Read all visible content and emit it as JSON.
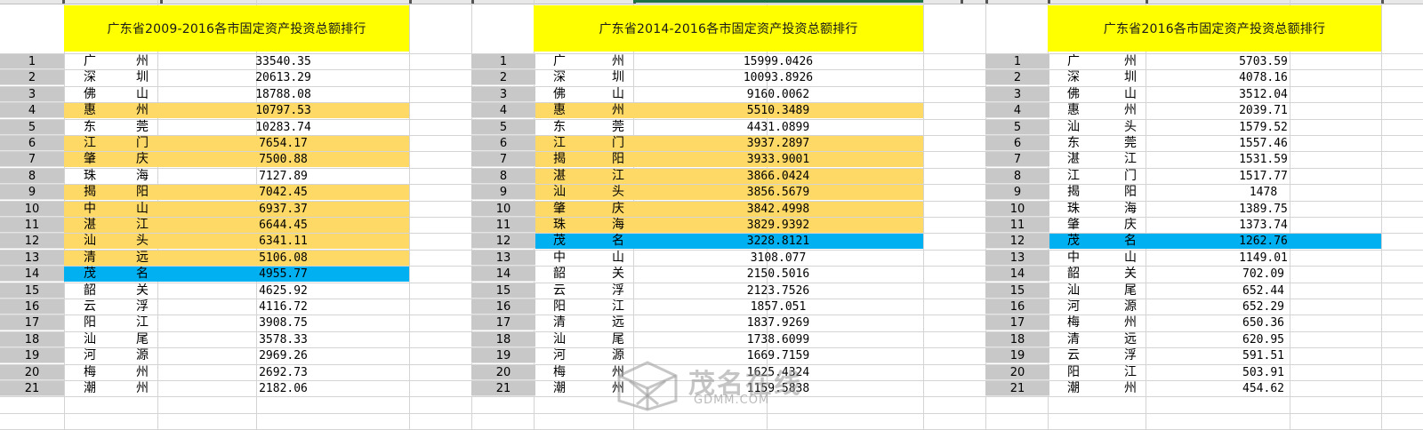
{
  "colors": {
    "title_bg": "#ffff00",
    "highlight_orange": "#ffd966",
    "highlight_blue": "#00b0f0",
    "rownum_bg": "#c8c8c8"
  },
  "tables": [
    {
      "title": "广东省2009-2016各市固定资产投资总额排行",
      "rows": [
        {
          "rank": "1",
          "city": "广州",
          "value": "33540.35",
          "hl": ""
        },
        {
          "rank": "2",
          "city": "深圳",
          "value": "20613.29",
          "hl": ""
        },
        {
          "rank": "3",
          "city": "佛山",
          "value": "18788.08",
          "hl": ""
        },
        {
          "rank": "4",
          "city": "惠州",
          "value": "10797.53",
          "hl": "orange"
        },
        {
          "rank": "5",
          "city": "东莞",
          "value": "10283.74",
          "hl": ""
        },
        {
          "rank": "6",
          "city": "江门",
          "value": "7654.17",
          "hl": "orange"
        },
        {
          "rank": "7",
          "city": "肇庆",
          "value": "7500.88",
          "hl": "orange"
        },
        {
          "rank": "8",
          "city": "珠海",
          "value": "7127.89",
          "hl": ""
        },
        {
          "rank": "9",
          "city": "揭阳",
          "value": "7042.45",
          "hl": "orange"
        },
        {
          "rank": "10",
          "city": "中山",
          "value": "6937.37",
          "hl": "orange"
        },
        {
          "rank": "11",
          "city": "湛江",
          "value": "6644.45",
          "hl": "orange"
        },
        {
          "rank": "12",
          "city": "汕头",
          "value": "6341.11",
          "hl": "orange"
        },
        {
          "rank": "13",
          "city": "清远",
          "value": "5106.08",
          "hl": "orange"
        },
        {
          "rank": "14",
          "city": "茂名",
          "value": "4955.77",
          "hl": "blue"
        },
        {
          "rank": "15",
          "city": "韶关",
          "value": "4625.92",
          "hl": ""
        },
        {
          "rank": "16",
          "city": "云浮",
          "value": "4116.72",
          "hl": ""
        },
        {
          "rank": "17",
          "city": "阳江",
          "value": "3908.75",
          "hl": ""
        },
        {
          "rank": "18",
          "city": "汕尾",
          "value": "3578.33",
          "hl": ""
        },
        {
          "rank": "19",
          "city": "河源",
          "value": "2969.26",
          "hl": ""
        },
        {
          "rank": "20",
          "city": "梅州",
          "value": "2692.73",
          "hl": ""
        },
        {
          "rank": "21",
          "city": "潮州",
          "value": "2182.06",
          "hl": ""
        }
      ]
    },
    {
      "title": "广东省2014-2016各市固定资产投资总额排行",
      "rows": [
        {
          "rank": "1",
          "city": "广州",
          "value": "15999.0426",
          "hl": ""
        },
        {
          "rank": "2",
          "city": "深圳",
          "value": "10093.8926",
          "hl": ""
        },
        {
          "rank": "3",
          "city": "佛山",
          "value": "9160.0062",
          "hl": ""
        },
        {
          "rank": "4",
          "city": "惠州",
          "value": "5510.3489",
          "hl": "orange"
        },
        {
          "rank": "5",
          "city": "东莞",
          "value": "4431.0899",
          "hl": ""
        },
        {
          "rank": "6",
          "city": "江门",
          "value": "3937.2897",
          "hl": "orange"
        },
        {
          "rank": "7",
          "city": "揭阳",
          "value": "3933.9001",
          "hl": "orange"
        },
        {
          "rank": "8",
          "city": "湛江",
          "value": "3866.0424",
          "hl": "orange"
        },
        {
          "rank": "9",
          "city": "汕头",
          "value": "3856.5679",
          "hl": "orange"
        },
        {
          "rank": "10",
          "city": "肇庆",
          "value": "3842.4998",
          "hl": "orange"
        },
        {
          "rank": "11",
          "city": "珠海",
          "value": "3829.9392",
          "hl": "orange"
        },
        {
          "rank": "12",
          "city": "茂名",
          "value": "3228.8121",
          "hl": "blue"
        },
        {
          "rank": "13",
          "city": "中山",
          "value": "3108.077",
          "hl": ""
        },
        {
          "rank": "14",
          "city": "韶关",
          "value": "2150.5016",
          "hl": ""
        },
        {
          "rank": "15",
          "city": "云浮",
          "value": "2123.7526",
          "hl": ""
        },
        {
          "rank": "16",
          "city": "阳江",
          "value": "1857.051",
          "hl": ""
        },
        {
          "rank": "17",
          "city": "清远",
          "value": "1837.9269",
          "hl": ""
        },
        {
          "rank": "18",
          "city": "汕尾",
          "value": "1738.6099",
          "hl": ""
        },
        {
          "rank": "19",
          "city": "河源",
          "value": "1669.7159",
          "hl": ""
        },
        {
          "rank": "20",
          "city": "梅州",
          "value": "1625.4324",
          "hl": ""
        },
        {
          "rank": "21",
          "city": "潮州",
          "value": "1159.5838",
          "hl": ""
        }
      ]
    },
    {
      "title": "广东省2016各市固定资产投资总额排行",
      "rows": [
        {
          "rank": "1",
          "city": "广州",
          "value": "5703.59",
          "hl": ""
        },
        {
          "rank": "2",
          "city": "深圳",
          "value": "4078.16",
          "hl": ""
        },
        {
          "rank": "3",
          "city": "佛山",
          "value": "3512.04",
          "hl": ""
        },
        {
          "rank": "4",
          "city": "惠州",
          "value": "2039.71",
          "hl": ""
        },
        {
          "rank": "5",
          "city": "汕头",
          "value": "1579.52",
          "hl": ""
        },
        {
          "rank": "6",
          "city": "东莞",
          "value": "1557.46",
          "hl": ""
        },
        {
          "rank": "7",
          "city": "湛江",
          "value": "1531.59",
          "hl": ""
        },
        {
          "rank": "8",
          "city": "江门",
          "value": "1517.77",
          "hl": ""
        },
        {
          "rank": "9",
          "city": "揭阳",
          "value": "1478",
          "hl": ""
        },
        {
          "rank": "10",
          "city": "珠海",
          "value": "1389.75",
          "hl": ""
        },
        {
          "rank": "11",
          "city": "肇庆",
          "value": "1373.74",
          "hl": ""
        },
        {
          "rank": "12",
          "city": "茂名",
          "value": "1262.76",
          "hl": "blue"
        },
        {
          "rank": "13",
          "city": "中山",
          "value": "1149.01",
          "hl": ""
        },
        {
          "rank": "14",
          "city": "韶关",
          "value": "702.09",
          "hl": ""
        },
        {
          "rank": "15",
          "city": "汕尾",
          "value": "652.44",
          "hl": ""
        },
        {
          "rank": "16",
          "city": "河源",
          "value": "652.29",
          "hl": ""
        },
        {
          "rank": "17",
          "city": "梅州",
          "value": "650.36",
          "hl": ""
        },
        {
          "rank": "18",
          "city": "清远",
          "value": "620.95",
          "hl": ""
        },
        {
          "rank": "19",
          "city": "云浮",
          "value": "591.51",
          "hl": ""
        },
        {
          "rank": "20",
          "city": "阳江",
          "value": "503.91",
          "hl": ""
        },
        {
          "rank": "21",
          "city": "潮州",
          "value": "454.62",
          "hl": ""
        }
      ]
    }
  ],
  "watermark": {
    "name": "茂名在线",
    "domain": "GDMM.COM",
    "icon": "cube-logo-icon"
  }
}
